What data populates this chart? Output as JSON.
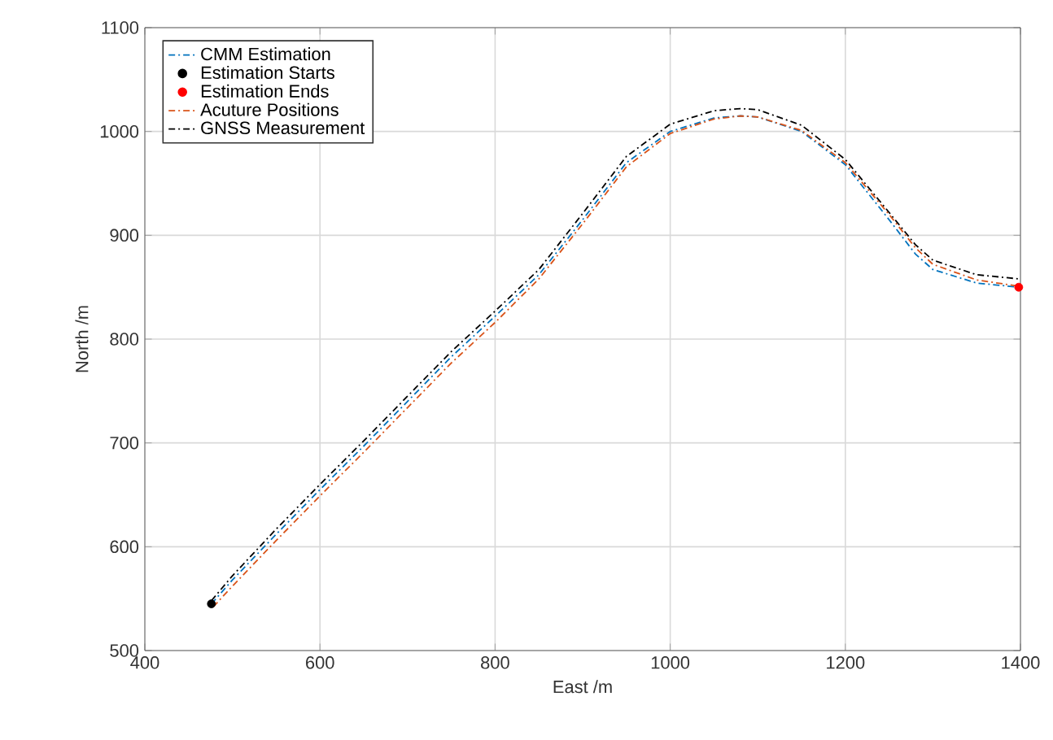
{
  "chart_data": {
    "type": "line",
    "xlabel": "East /m",
    "ylabel": "North /m",
    "xlim": [
      400,
      1400
    ],
    "ylim": [
      500,
      1100
    ],
    "xticks": [
      400,
      600,
      800,
      1000,
      1200,
      1400
    ],
    "yticks": [
      500,
      600,
      700,
      800,
      900,
      1000,
      1100
    ],
    "grid": true,
    "legend": "top left",
    "line_style": "dashdot",
    "series": [
      {
        "name": "CMM Estimation",
        "marker": "none",
        "color": "#0072bd",
        "x": [
          476,
          500,
          550,
          600,
          650,
          700,
          750,
          800,
          850,
          900,
          950,
          1000,
          1050,
          1080,
          1100,
          1150,
          1200,
          1250,
          1280,
          1300,
          1350,
          1398
        ],
        "values": [
          545,
          568,
          612,
          655,
          697,
          740,
          783,
          822,
          862,
          915,
          970,
          1000,
          1013,
          1015,
          1014,
          1000,
          968,
          915,
          882,
          867,
          854,
          850
        ]
      },
      {
        "name": "Estimation Starts",
        "type": "scatter",
        "marker": "circle",
        "color": "#000000",
        "x": [
          476
        ],
        "values": [
          545
        ]
      },
      {
        "name": "Estimation Ends",
        "type": "scatter",
        "marker": "circle",
        "color": "#ff0000",
        "x": [
          1398
        ],
        "values": [
          850
        ]
      },
      {
        "name": "Acuture Positions",
        "marker": "none",
        "color": "#d95319",
        "x": [
          478,
          500,
          550,
          600,
          650,
          700,
          750,
          800,
          850,
          900,
          950,
          1000,
          1050,
          1080,
          1100,
          1150,
          1200,
          1250,
          1280,
          1300,
          1350,
          1398
        ],
        "values": [
          542,
          562,
          606,
          649,
          691,
          734,
          777,
          816,
          858,
          911,
          966,
          998,
          1012,
          1015,
          1014,
          1001,
          970,
          920,
          888,
          872,
          857,
          851
        ]
      },
      {
        "name": "GNSS Measurement",
        "marker": "none",
        "color": "#000000",
        "x": [
          476,
          500,
          550,
          600,
          650,
          700,
          750,
          800,
          850,
          900,
          950,
          1000,
          1050,
          1080,
          1100,
          1150,
          1200,
          1250,
          1280,
          1300,
          1350,
          1398
        ],
        "values": [
          548,
          572,
          617,
          660,
          702,
          745,
          788,
          827,
          867,
          921,
          976,
          1007,
          1020,
          1022,
          1021,
          1006,
          973,
          922,
          891,
          876,
          862,
          858
        ]
      }
    ]
  }
}
